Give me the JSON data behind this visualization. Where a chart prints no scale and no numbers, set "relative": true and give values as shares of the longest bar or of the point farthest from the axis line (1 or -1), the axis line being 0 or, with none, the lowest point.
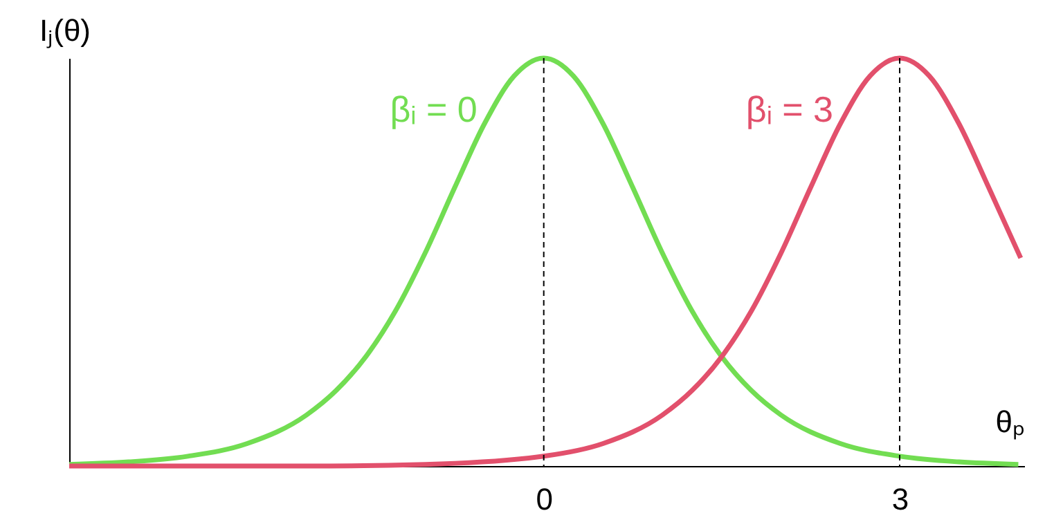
{
  "chart_data": {
    "type": "line",
    "xlabel": "θₚ",
    "ylabel": "Iⱼ(θ)",
    "relative": true,
    "xlim": [
      -4,
      4.05
    ],
    "xticks": [
      0,
      3
    ],
    "grid": false,
    "marker": "none",
    "line_style": "solid",
    "series": [
      {
        "name": "βᵢ = 0",
        "color": "#72dd52",
        "x": [
          -4,
          -3.5,
          -3,
          -2.5,
          -2,
          -1.75,
          -1.5,
          -1.25,
          -1,
          -0.75,
          -0.5,
          -0.25,
          0,
          0.25,
          0.5,
          0.75,
          1,
          1.25,
          1.5,
          1.75,
          2,
          2.5,
          3,
          3.5,
          4
        ],
        "values": [
          0.004,
          0.01,
          0.024,
          0.055,
          0.125,
          0.185,
          0.268,
          0.38,
          0.522,
          0.683,
          0.839,
          0.956,
          1,
          0.956,
          0.839,
          0.683,
          0.522,
          0.38,
          0.268,
          0.185,
          0.125,
          0.055,
          0.024,
          0.01,
          0.004
        ]
      },
      {
        "name": "βᵢ = 3",
        "color": "#e2506c",
        "x": [
          -4,
          -3,
          -2,
          -1,
          0,
          0.5,
          1,
          1.25,
          1.5,
          1.75,
          2,
          2.25,
          2.5,
          2.75,
          3,
          3.25,
          3.5,
          3.75,
          4.02
        ],
        "values": [
          0,
          0,
          0,
          0.004,
          0.024,
          0.055,
          0.125,
          0.185,
          0.268,
          0.38,
          0.522,
          0.683,
          0.839,
          0.956,
          1,
          0.956,
          0.839,
          0.683,
          0.51
        ]
      }
    ],
    "ref_lines": [
      {
        "axis": "x",
        "value": 0,
        "color": "#000000",
        "line_style": "dashed"
      },
      {
        "axis": "x",
        "value": 3,
        "color": "#000000",
        "line_style": "dashed"
      }
    ]
  }
}
